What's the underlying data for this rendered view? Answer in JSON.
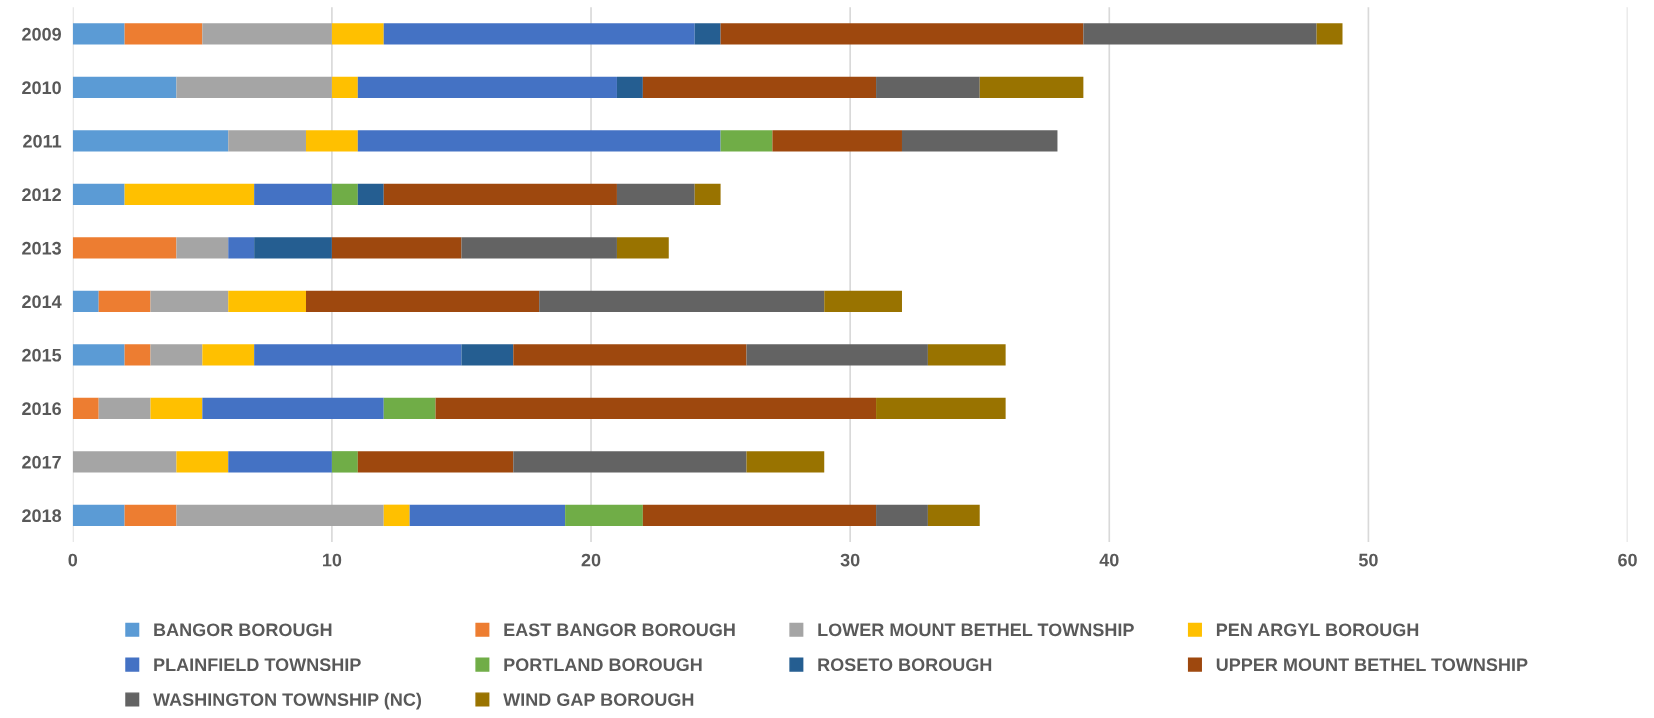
{
  "chart_data": {
    "type": "bar",
    "orientation": "horizontal",
    "stacked": true,
    "categories": [
      "2009",
      "2010",
      "2011",
      "2012",
      "2013",
      "2014",
      "2015",
      "2016",
      "2017",
      "2018"
    ],
    "series": [
      {
        "name": "BANGOR BOROUGH",
        "color": "#5b9bd5",
        "values": [
          2,
          4,
          6,
          2,
          0,
          1,
          2,
          0,
          0,
          2
        ]
      },
      {
        "name": "EAST BANGOR BOROUGH",
        "color": "#ed7d31",
        "values": [
          3,
          0,
          0,
          0,
          4,
          2,
          1,
          1,
          0,
          2
        ]
      },
      {
        "name": "LOWER MOUNT BETHEL TOWNSHIP",
        "color": "#a5a5a5",
        "values": [
          5,
          6,
          3,
          0,
          2,
          3,
          2,
          2,
          4,
          8
        ]
      },
      {
        "name": "PEN ARGYL BOROUGH",
        "color": "#ffc000",
        "values": [
          2,
          1,
          2,
          5,
          0,
          3,
          2,
          2,
          2,
          1
        ]
      },
      {
        "name": "PLAINFIELD TOWNSHIP",
        "color": "#4472c4",
        "values": [
          12,
          10,
          14,
          3,
          1,
          0,
          8,
          7,
          4,
          6
        ]
      },
      {
        "name": "PORTLAND BOROUGH",
        "color": "#70ad47",
        "values": [
          0,
          0,
          2,
          1,
          0,
          0,
          0,
          2,
          1,
          3
        ]
      },
      {
        "name": "ROSETO BOROUGH",
        "color": "#255e91",
        "values": [
          1,
          1,
          0,
          1,
          3,
          0,
          2,
          0,
          0,
          0
        ]
      },
      {
        "name": "UPPER MOUNT BETHEL TOWNSHIP",
        "color": "#9e480e",
        "values": [
          14,
          9,
          5,
          9,
          5,
          9,
          9,
          17,
          6,
          9
        ]
      },
      {
        "name": "WASHINGTON TOWNSHIP (NC)",
        "color": "#636363",
        "values": [
          9,
          4,
          6,
          3,
          6,
          11,
          7,
          0,
          9,
          2
        ]
      },
      {
        "name": "WIND GAP BOROUGH",
        "color": "#997300",
        "values": [
          1,
          4,
          0,
          1,
          2,
          3,
          3,
          5,
          3,
          2
        ]
      }
    ],
    "xlim": [
      0,
      60
    ],
    "xticks": [
      0,
      10,
      20,
      30,
      40,
      50,
      60
    ],
    "grid": "x",
    "legend": "bottom"
  }
}
